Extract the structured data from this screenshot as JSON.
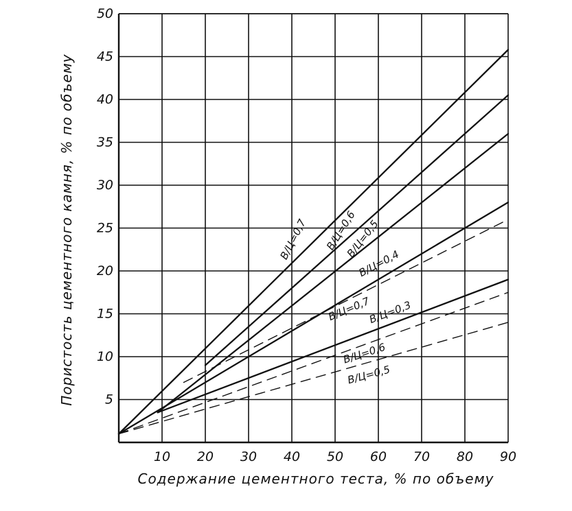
{
  "chart_data": {
    "type": "line",
    "title": "",
    "xlabel": "Содержание цементного теста, % по объему",
    "ylabel": "Пористость цементного камня, % по объему",
    "xlim": [
      0,
      90
    ],
    "ylim": [
      0,
      50
    ],
    "x_ticks": [
      "10",
      "20",
      "30",
      "40",
      "50",
      "60",
      "70",
      "80",
      "90"
    ],
    "y_ticks": [
      "5",
      "10",
      "15",
      "20",
      "25",
      "30",
      "35",
      "40",
      "45",
      "50"
    ],
    "grid": true,
    "colors": {
      "line": "#111111",
      "grid": "#111111",
      "background": "#ffffff"
    },
    "series": [
      {
        "name": "В/Ц=0,7",
        "style": "solid",
        "x": [
          0,
          90
        ],
        "y": [
          1.0,
          45.8
        ]
      },
      {
        "name": "В/Ц=0,6",
        "style": "solid",
        "x": [
          20,
          90
        ],
        "y": [
          9.0,
          40.5
        ]
      },
      {
        "name": "В/Ц=0,5",
        "style": "solid",
        "x": [
          9,
          90
        ],
        "y": [
          3.5,
          36.0
        ]
      },
      {
        "name": "В/Ц=0,4",
        "style": "solid",
        "x": [
          0,
          90
        ],
        "y": [
          1.0,
          28.0
        ]
      },
      {
        "name": "В/Ц=0,3",
        "style": "solid",
        "x": [
          9,
          90
        ],
        "y": [
          3.5,
          19.0
        ]
      },
      {
        "name": "В/Ц=0,7",
        "style": "dashed",
        "x": [
          15,
          90
        ],
        "y": [
          7.0,
          26.0
        ]
      },
      {
        "name": "В/Ц=0,6",
        "style": "dashed",
        "x": [
          0,
          90
        ],
        "y": [
          1.0,
          17.5
        ]
      },
      {
        "name": "В/Ц=0,5",
        "style": "dashed",
        "x": [
          0,
          90
        ],
        "y": [
          1.0,
          14.0
        ]
      }
    ],
    "labels": [
      {
        "text": "В/Ц=0,7",
        "x": 41,
        "y": 23.5,
        "angle": 63
      },
      {
        "text": "В/Ц=0,6",
        "x": 52,
        "y": 24.5,
        "angle": 58
      },
      {
        "text": "В/Ц=0,5",
        "x": 57,
        "y": 23.5,
        "angle": 52
      },
      {
        "text": "В/Ц=0,4",
        "x": 60.5,
        "y": 20.5,
        "angle": 28
      },
      {
        "text": "В/Ц=0,7",
        "x": 53.5,
        "y": 15.2,
        "angle": 23
      },
      {
        "text": "В/Ц=0,3",
        "x": 63,
        "y": 14.8,
        "angle": 21
      },
      {
        "text": "В/Ц=0,6",
        "x": 57,
        "y": 10.0,
        "angle": 18
      },
      {
        "text": "В/Ц=0,5",
        "x": 58,
        "y": 7.5,
        "angle": 15
      }
    ]
  }
}
